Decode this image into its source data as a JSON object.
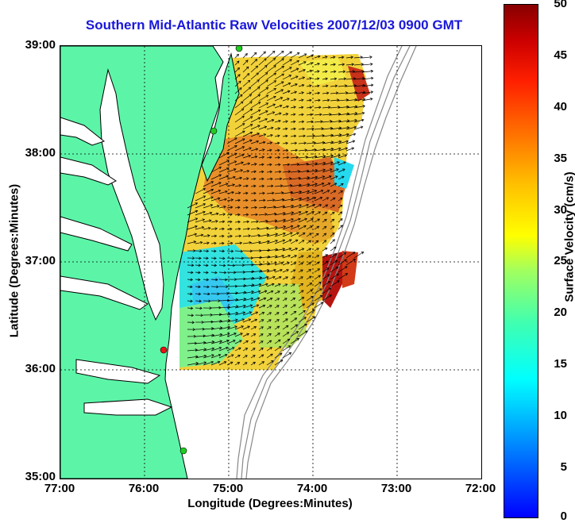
{
  "title": "Southern Mid-Atlantic Raw Velocities 2007/12/03 0900 GMT",
  "map": {
    "y_ticks": [
      "39:00",
      "38:00",
      "37:00",
      "36:00",
      "35:00"
    ],
    "x_ticks": [
      "77:00",
      "76:00",
      "75:00",
      "74:00",
      "73:00",
      "72:00"
    ],
    "ylabel": "Latitude (Degrees:Minutes)",
    "xlabel": "Longitude (Degrees:Minutes)",
    "lat_range": [
      35,
      39
    ],
    "lon_range": [
      -77,
      -72
    ],
    "grid": true,
    "land_color": "#5cf5a8",
    "coastline_color": "#000000"
  },
  "colorbar": {
    "label": "Surface Velocity (cm/s)",
    "ticks": [
      "50",
      "45",
      "40",
      "35",
      "30",
      "25",
      "20",
      "15",
      "10",
      "5",
      "0"
    ],
    "range": [
      0,
      50
    ],
    "colormap": "jet"
  },
  "stations": [
    {
      "color": "#22cc22"
    },
    {
      "color": "#22cc22"
    },
    {
      "color": "#ee1111"
    },
    {
      "color": "#22cc22"
    }
  ]
}
